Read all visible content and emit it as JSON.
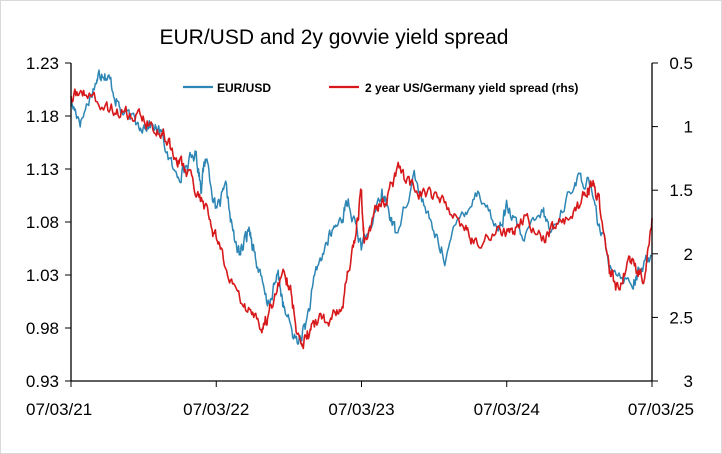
{
  "chart_data": {
    "type": "line",
    "title": "EUR/USD and 2y govvie yield spread",
    "x_ticks": [
      "07/03/21",
      "07/03/22",
      "07/03/23",
      "07/03/24",
      "07/03/25"
    ],
    "x_range": [
      "2021-03-07",
      "2025-03-07"
    ],
    "y_left": {
      "ticks": [
        "1.23",
        "1.18",
        "1.13",
        "1.08",
        "1.03",
        "0.98",
        "0.93"
      ],
      "range": [
        0.93,
        1.23
      ]
    },
    "y_right": {
      "ticks": [
        "0.5",
        "1",
        "1.5",
        "2",
        "2.5",
        "3"
      ],
      "range": [
        0.5,
        3
      ],
      "inverted": true
    },
    "legend_position": "top",
    "grid": false,
    "series": [
      {
        "name": "EUR/USD",
        "axis": "left",
        "color": "#2E86B4",
        "points": [
          [
            "2021-03-07",
            1.192
          ],
          [
            "2021-04-01",
            1.176
          ],
          [
            "2021-05-10",
            1.214
          ],
          [
            "2021-05-25",
            1.224
          ],
          [
            "2021-06-15",
            1.211
          ],
          [
            "2021-07-10",
            1.185
          ],
          [
            "2021-08-20",
            1.172
          ],
          [
            "2021-09-20",
            1.173
          ],
          [
            "2021-10-20",
            1.163
          ],
          [
            "2021-11-24",
            1.123
          ],
          [
            "2021-12-20",
            1.132
          ],
          [
            "2022-01-15",
            1.145
          ],
          [
            "2022-01-28",
            1.115
          ],
          [
            "2022-02-10",
            1.143
          ],
          [
            "2022-03-07",
            1.089
          ],
          [
            "2022-03-31",
            1.11
          ],
          [
            "2022-04-28",
            1.052
          ],
          [
            "2022-05-10",
            1.053
          ],
          [
            "2022-05-30",
            1.075
          ],
          [
            "2022-06-15",
            1.045
          ],
          [
            "2022-07-14",
            1.0
          ],
          [
            "2022-08-10",
            1.03
          ],
          [
            "2022-08-26",
            0.995
          ],
          [
            "2022-09-27",
            0.965
          ],
          [
            "2022-10-20",
            0.985
          ],
          [
            "2022-11-15",
            1.035
          ],
          [
            "2022-12-15",
            1.065
          ],
          [
            "2023-01-15",
            1.083
          ],
          [
            "2023-02-02",
            1.1
          ],
          [
            "2023-03-07",
            1.055
          ],
          [
            "2023-04-26",
            1.104
          ],
          [
            "2023-05-10",
            1.098
          ],
          [
            "2023-05-31",
            1.07
          ],
          [
            "2023-07-18",
            1.124
          ],
          [
            "2023-08-25",
            1.08
          ],
          [
            "2023-10-03",
            1.048
          ],
          [
            "2023-11-15",
            1.088
          ],
          [
            "2023-12-28",
            1.11
          ],
          [
            "2024-02-14",
            1.072
          ],
          [
            "2024-03-08",
            1.095
          ],
          [
            "2024-04-16",
            1.062
          ],
          [
            "2024-06-06",
            1.09
          ],
          [
            "2024-06-26",
            1.068
          ],
          [
            "2024-08-23",
            1.118
          ],
          [
            "2024-09-25",
            1.12
          ],
          [
            "2024-10-23",
            1.078
          ],
          [
            "2024-11-22",
            1.042
          ],
          [
            "2025-01-13",
            1.022
          ],
          [
            "2025-02-03",
            1.032
          ],
          [
            "2025-03-04",
            1.049
          ]
        ]
      },
      {
        "name": "2 year US/Germany yield spread (rhs)",
        "axis": "right",
        "color": "#D7191C",
        "points": [
          [
            "2021-03-07",
            0.78
          ],
          [
            "2021-04-10",
            0.72
          ],
          [
            "2021-06-05",
            0.86
          ],
          [
            "2021-07-15",
            0.88
          ],
          [
            "2021-08-20",
            0.92
          ],
          [
            "2021-09-25",
            0.98
          ],
          [
            "2021-10-25",
            1.05
          ],
          [
            "2021-11-25",
            1.25
          ],
          [
            "2021-12-20",
            1.35
          ],
          [
            "2022-01-20",
            1.5
          ],
          [
            "2022-02-20",
            1.75
          ],
          [
            "2022-03-15",
            1.98
          ],
          [
            "2022-04-20",
            2.25
          ],
          [
            "2022-05-25",
            2.45
          ],
          [
            "2022-06-30",
            2.6
          ],
          [
            "2022-07-20",
            2.45
          ],
          [
            "2022-08-25",
            2.1
          ],
          [
            "2022-09-10",
            2.3
          ],
          [
            "2022-10-05",
            2.75
          ],
          [
            "2022-10-25",
            2.62
          ],
          [
            "2022-11-15",
            2.5
          ],
          [
            "2022-12-20",
            2.55
          ],
          [
            "2023-01-20",
            2.35
          ],
          [
            "2023-02-15",
            1.95
          ],
          [
            "2023-03-07",
            1.52
          ],
          [
            "2023-03-14",
            1.9
          ],
          [
            "2023-04-15",
            1.65
          ],
          [
            "2023-05-10",
            1.55
          ],
          [
            "2023-06-10",
            1.35
          ],
          [
            "2023-07-15",
            1.5
          ],
          [
            "2023-08-25",
            1.55
          ],
          [
            "2023-10-05",
            1.62
          ],
          [
            "2023-11-25",
            1.8
          ],
          [
            "2023-12-25",
            1.95
          ],
          [
            "2024-02-20",
            1.8
          ],
          [
            "2024-03-20",
            1.85
          ],
          [
            "2024-04-20",
            1.72
          ],
          [
            "2024-06-10",
            1.88
          ],
          [
            "2024-07-10",
            1.78
          ],
          [
            "2024-08-25",
            1.68
          ],
          [
            "2024-09-25",
            1.5
          ],
          [
            "2024-10-10",
            1.42
          ],
          [
            "2024-10-25",
            1.6
          ],
          [
            "2024-11-20",
            2.15
          ],
          [
            "2024-12-10",
            2.28
          ],
          [
            "2025-01-10",
            2.05
          ],
          [
            "2025-01-25",
            2.1
          ],
          [
            "2025-02-15",
            2.18
          ],
          [
            "2025-03-07",
            1.72
          ]
        ]
      }
    ]
  }
}
